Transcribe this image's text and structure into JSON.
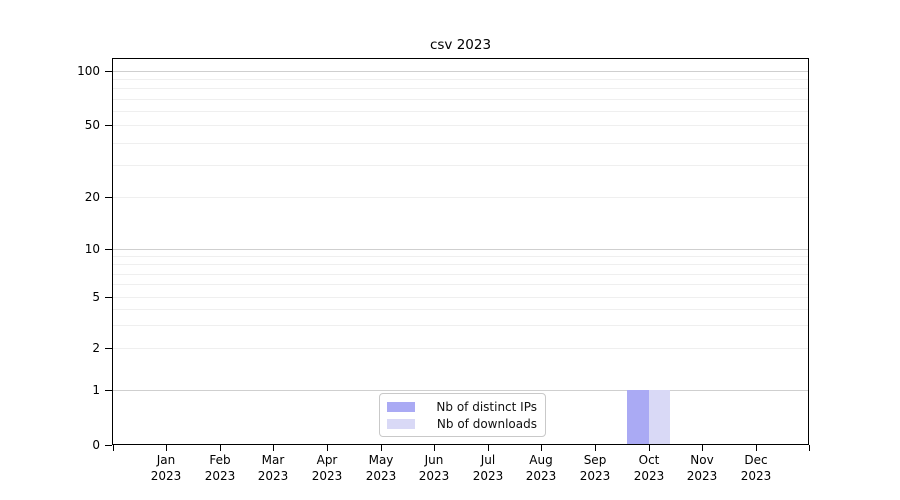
{
  "title": "csv 2023",
  "chart_data": {
    "type": "bar",
    "title": "csv 2023",
    "categories": [
      "Jan",
      "Feb",
      "Mar",
      "Apr",
      "May",
      "Jun",
      "Jul",
      "Aug",
      "Sep",
      "Oct",
      "Nov",
      "Dec"
    ],
    "category_year": "2023",
    "series": [
      {
        "name": "Nb of distinct IPs",
        "color": "#aaaaf4",
        "values": [
          0,
          0,
          0,
          0,
          0,
          0,
          0,
          0,
          0,
          1,
          0,
          0
        ]
      },
      {
        "name": "Nb of downloads",
        "color": "#d9d9f6",
        "values": [
          0,
          0,
          0,
          0,
          0,
          0,
          0,
          0,
          0,
          1,
          0,
          0
        ]
      }
    ],
    "yticks": [
      0,
      1,
      2,
      5,
      10,
      20,
      50,
      100
    ],
    "minor_ytick_values": [
      2,
      3,
      4,
      5,
      6,
      7,
      8,
      9,
      20,
      30,
      40,
      50,
      60,
      70,
      80,
      90
    ],
    "major_grid_values": [
      1,
      10,
      100
    ],
    "yscale": "log-above-1-with-zero-baseline",
    "ylim": [
      0,
      115
    ],
    "grid": "horizontal major + minor",
    "legend_position": "bottom-center",
    "colors": {
      "major_grid": "#cfcfcf",
      "minor_grid": "#efefef",
      "axis": "#000000",
      "background": "#ffffff"
    }
  },
  "legend": {
    "items": [
      {
        "label": "Nb of distinct IPs",
        "color": "#aaaaf4"
      },
      {
        "label": "Nb of downloads",
        "color": "#d9d9f6"
      }
    ]
  }
}
